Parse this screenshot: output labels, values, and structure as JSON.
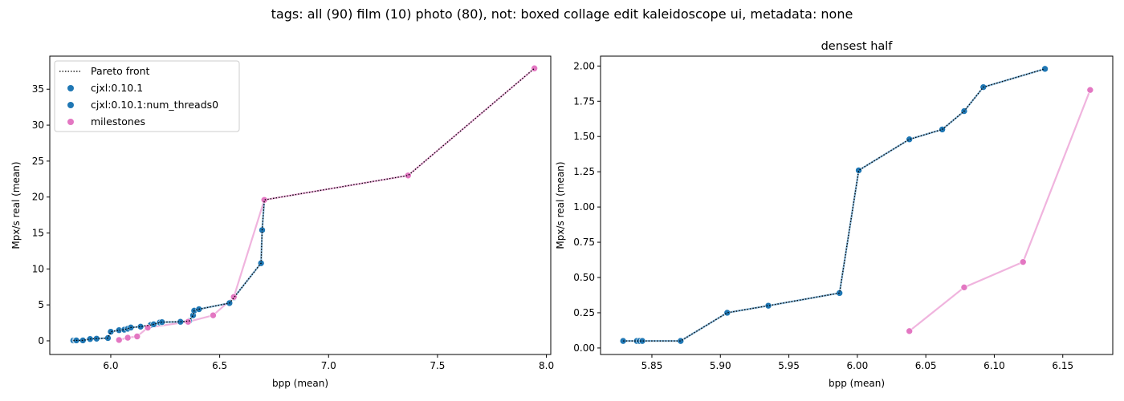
{
  "figure": {
    "suptitle": "tags: all (90) film (10) photo (80), not: boxed collage edit kaleidoscope ui, metadata: none"
  },
  "chart_data": [
    {
      "type": "scatter",
      "title": "",
      "xlabel": "bpp (mean)",
      "ylabel": "Mpx/s real (mean)",
      "xlim": [
        5.72,
        8.02
      ],
      "ylim": [
        -1.9,
        39.6
      ],
      "xticks": [
        "6.0",
        "6.5",
        "7.0",
        "7.5",
        "8.0"
      ],
      "yticks": [
        "0",
        "5",
        "10",
        "15",
        "20",
        "25",
        "30",
        "35"
      ],
      "grid": false,
      "legend": {
        "placement": "upper-left",
        "entries": [
          {
            "label": "Pareto front",
            "kind": "dotted-line",
            "color": "#000000"
          },
          {
            "label": "cjxl:0.10.1",
            "kind": "marker",
            "color": "#1f77b4"
          },
          {
            "label": "cjxl:0.10.1:num_threads0",
            "kind": "marker",
            "color": "#1f77b4"
          },
          {
            "label": "milestones",
            "kind": "marker",
            "color": "#e377c2"
          }
        ]
      },
      "series": [
        {
          "name": "cjxl:0.10.1",
          "color": "#1f77b4",
          "points": [
            [
              5.828,
              0.05
            ],
            [
              5.838,
              0.06
            ],
            [
              5.842,
              0.06
            ],
            [
              5.872,
              0.06
            ],
            [
              5.905,
              0.25
            ],
            [
              5.935,
              0.3
            ],
            [
              5.987,
              0.39
            ],
            [
              6.0,
              1.26
            ],
            [
              6.038,
              1.48
            ],
            [
              6.062,
              1.55
            ],
            [
              6.078,
              1.68
            ],
            [
              6.092,
              1.85
            ],
            [
              6.137,
              1.97
            ],
            [
              6.183,
              2.2
            ],
            [
              6.197,
              2.3
            ],
            [
              6.225,
              2.55
            ],
            [
              6.235,
              2.6
            ],
            [
              6.32,
              2.65
            ],
            [
              6.36,
              2.75
            ],
            [
              6.378,
              3.55
            ],
            [
              6.383,
              4.2
            ],
            [
              6.405,
              4.4
            ],
            [
              6.545,
              5.25
            ],
            [
              6.565,
              6.0
            ],
            [
              6.69,
              10.8
            ],
            [
              6.695,
              15.4
            ],
            [
              6.705,
              19.6
            ]
          ]
        },
        {
          "name": "milestones",
          "color": "#e377c2",
          "points": [
            [
              6.038,
              0.12
            ],
            [
              6.078,
              0.43
            ],
            [
              6.121,
              0.61
            ],
            [
              6.17,
              1.83
            ],
            [
              6.355,
              2.65
            ],
            [
              6.47,
              3.55
            ],
            [
              6.565,
              6.1
            ],
            [
              6.705,
              19.6
            ],
            [
              7.365,
              23.0
            ],
            [
              7.945,
              37.9
            ]
          ]
        }
      ],
      "pareto_front": [
        [
          5.828,
          0.05
        ],
        [
          5.838,
          0.06
        ],
        [
          5.842,
          0.06
        ],
        [
          5.872,
          0.06
        ],
        [
          5.905,
          0.25
        ],
        [
          5.935,
          0.3
        ],
        [
          5.987,
          0.39
        ],
        [
          6.0,
          1.26
        ],
        [
          6.038,
          1.48
        ],
        [
          6.062,
          1.55
        ],
        [
          6.078,
          1.68
        ],
        [
          6.092,
          1.85
        ],
        [
          6.137,
          1.97
        ],
        [
          6.183,
          2.2
        ],
        [
          6.197,
          2.3
        ],
        [
          6.225,
          2.55
        ],
        [
          6.235,
          2.6
        ],
        [
          6.32,
          2.65
        ],
        [
          6.36,
          2.75
        ],
        [
          6.378,
          3.55
        ],
        [
          6.383,
          4.2
        ],
        [
          6.405,
          4.4
        ],
        [
          6.545,
          5.25
        ],
        [
          6.565,
          6.0
        ],
        [
          6.69,
          10.8
        ],
        [
          6.695,
          15.4
        ],
        [
          6.705,
          19.6
        ],
        [
          7.365,
          23.0
        ],
        [
          7.945,
          37.9
        ]
      ]
    },
    {
      "type": "scatter",
      "title": "densest half",
      "xlabel": "bpp (mean)",
      "ylabel": "Mpx/s real (mean)",
      "xlim": [
        5.8125,
        6.1865
      ],
      "ylim": [
        -0.046,
        2.07
      ],
      "xticks": [
        "5.85",
        "5.90",
        "5.95",
        "6.00",
        "6.05",
        "6.10",
        "6.15"
      ],
      "yticks": [
        "0.00",
        "0.25",
        "0.50",
        "0.75",
        "1.00",
        "1.25",
        "1.50",
        "1.75",
        "2.00"
      ],
      "grid": false,
      "series": [
        {
          "name": "cjxl:0.10.1",
          "color": "#1f77b4",
          "points": [
            [
              5.829,
              0.05
            ],
            [
              5.839,
              0.05
            ],
            [
              5.841,
              0.05
            ],
            [
              5.843,
              0.05
            ],
            [
              5.871,
              0.05
            ],
            [
              5.905,
              0.25
            ],
            [
              5.935,
              0.3
            ],
            [
              5.987,
              0.39
            ],
            [
              6.001,
              1.26
            ],
            [
              6.038,
              1.48
            ],
            [
              6.062,
              1.55
            ],
            [
              6.078,
              1.68
            ],
            [
              6.092,
              1.85
            ],
            [
              6.137,
              1.98
            ]
          ]
        },
        {
          "name": "milestones",
          "color": "#e377c2",
          "points": [
            [
              6.038,
              0.12
            ],
            [
              6.078,
              0.43
            ],
            [
              6.121,
              0.61
            ],
            [
              6.17,
              1.83
            ]
          ]
        }
      ],
      "pareto_front": [
        [
          5.829,
          0.05
        ],
        [
          5.839,
          0.05
        ],
        [
          5.841,
          0.05
        ],
        [
          5.843,
          0.05
        ],
        [
          5.871,
          0.05
        ],
        [
          5.905,
          0.25
        ],
        [
          5.935,
          0.3
        ],
        [
          5.987,
          0.39
        ],
        [
          6.001,
          1.26
        ],
        [
          6.038,
          1.48
        ],
        [
          6.062,
          1.55
        ],
        [
          6.078,
          1.68
        ],
        [
          6.092,
          1.85
        ],
        [
          6.137,
          1.98
        ]
      ]
    }
  ]
}
